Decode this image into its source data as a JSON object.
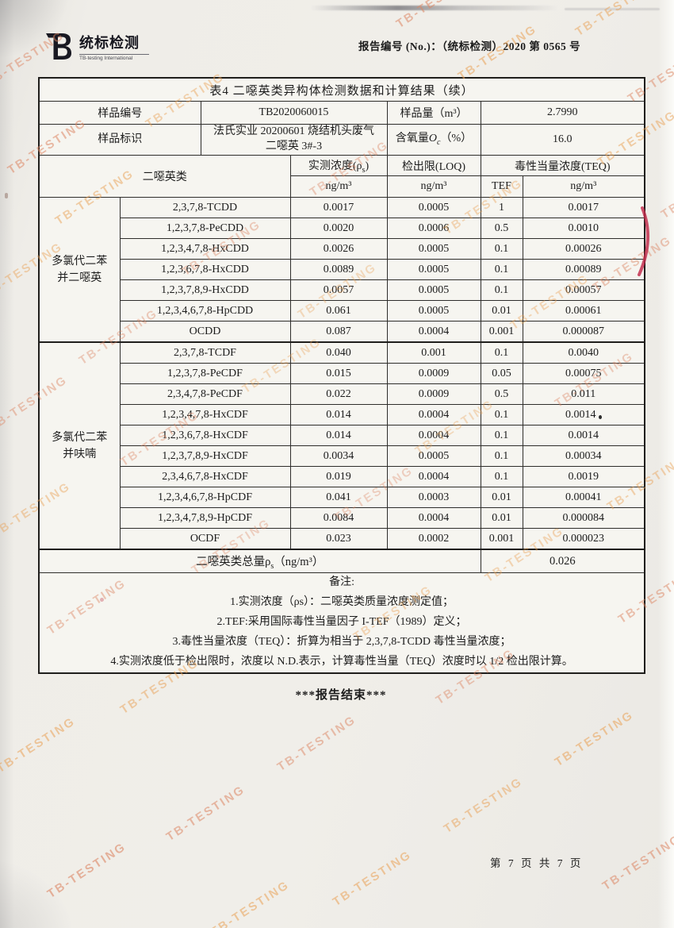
{
  "watermark": {
    "text": "TB-TESTING",
    "color_a": "#dd8765",
    "color_b": "#eaa257"
  },
  "header": {
    "logo_text": "统标检测",
    "logo_subtext": "TB-testing International",
    "report_no_label": "报告编号 (No.)：",
    "report_no_value": "（统标检测）2020 第 0565 号"
  },
  "table": {
    "title": "表4 二噁英类异构体检测数据和计算结果（续）",
    "info": {
      "sample_no_label": "样品编号",
      "sample_no_value": "TB2020060015",
      "sample_volume_label": "样品量（m³）",
      "sample_volume_value": "2.7990",
      "sample_id_label": "样品标识",
      "sample_id_line1": "法氏实业 20200601 烧结机头废气",
      "sample_id_line2": "二噁英 3#-3",
      "oxygen_prefix": "含氧量",
      "oxygen_symbol": "O",
      "oxygen_sub": "c",
      "oxygen_suffix": "（%）",
      "oxygen_value": "16.0"
    },
    "columns": {
      "dioxin_class": "二噁英类",
      "measured_prefix": "实测浓度(ρ",
      "measured_sub": "s",
      "measured_suffix": ")",
      "loq": "检出限(LOQ)",
      "teq": "毒性当量浓度(TEQ)",
      "tef": "TEF",
      "unit": "ng/m³"
    },
    "groups": [
      {
        "name_line1": "多氯代二苯",
        "name_line2": "并二噁英",
        "rows": [
          [
            "2,3,7,8-TCDD",
            "0.0017",
            "0.0005",
            "1",
            "0.0017",
            ""
          ],
          [
            "1,2,3,7,8-PeCDD",
            "0.0020",
            "0.0006",
            "0.5",
            "0.0010",
            ""
          ],
          [
            "1,2,3,4,7,8-HxCDD",
            "0.0026",
            "0.0005",
            "0.1",
            "0.00026",
            ""
          ],
          [
            "1,2,3,6,7,8-HxCDD",
            "0.0089",
            "0.0005",
            "0.1",
            "0.00089",
            ""
          ],
          [
            "1,2,3,7,8,9-HxCDD",
            "0.0057",
            "0.0005",
            "0.1",
            "0.00057",
            ""
          ],
          [
            "1,2,3,4,6,7,8-HpCDD",
            "0.061",
            "0.0005",
            "0.01",
            "0.00061",
            ""
          ],
          [
            "OCDD",
            "0.087",
            "0.0004",
            "0.001",
            "0.000087",
            ""
          ]
        ]
      },
      {
        "name_line1": "多氯代二苯",
        "name_line2": "并呋喃",
        "rows": [
          [
            "2,3,7,8-TCDF",
            "0.040",
            "0.001",
            "0.1",
            "0.0040",
            ""
          ],
          [
            "1,2,3,7,8-PeCDF",
            "0.015",
            "0.0009",
            "0.05",
            "0.00075",
            ""
          ],
          [
            "2,3,4,7,8-PeCDF",
            "0.022",
            "0.0009",
            "0.5",
            "0.011",
            ""
          ],
          [
            "1,2,3,4,7,8-HxCDF",
            "0.014",
            "0.0004",
            "0.1",
            "0.0014",
            "dot"
          ],
          [
            "1,2,3,6,7,8-HxCDF",
            "0.014",
            "0.0004",
            "0.1",
            "0.0014",
            ""
          ],
          [
            "1,2,3,7,8,9-HxCDF",
            "0.0034",
            "0.0005",
            "0.1",
            "0.00034",
            ""
          ],
          [
            "2,3,4,6,7,8-HxCDF",
            "0.019",
            "0.0004",
            "0.1",
            "0.0019",
            ""
          ],
          [
            "1,2,3,4,6,7,8-HpCDF",
            "0.041",
            "0.0003",
            "0.01",
            "0.00041",
            ""
          ],
          [
            "1,2,3,4,7,8,9-HpCDF",
            "0.0084",
            "0.0004",
            "0.01",
            "0.000084",
            ""
          ],
          [
            "OCDF",
            "0.023",
            "0.0002",
            "0.001",
            "0.000023",
            ""
          ]
        ]
      }
    ],
    "total": {
      "prefix": "二噁英类总量ρ",
      "sub": "s",
      "suffix": "（ng/m³）",
      "value": "0.026"
    },
    "notes": [
      "备注:",
      "1.实测浓度（ρs）：二噁英类质量浓度测定值；",
      "2.TEF:采用国际毒性当量因子 I-TEF（1989）定义；",
      "3.毒性当量浓度（TEQ）：折算为相当于 2,3,7,8-TCDD 毒性当量浓度；",
      "4.实测浓度低于检出限时，浓度以 N.D.表示，计算毒性当量（TEQ）浓度时以 1/2 检出限计算。"
    ]
  },
  "end_text": "***报告结束***",
  "footer": {
    "page_text": "第 7 页  共 7 页"
  }
}
